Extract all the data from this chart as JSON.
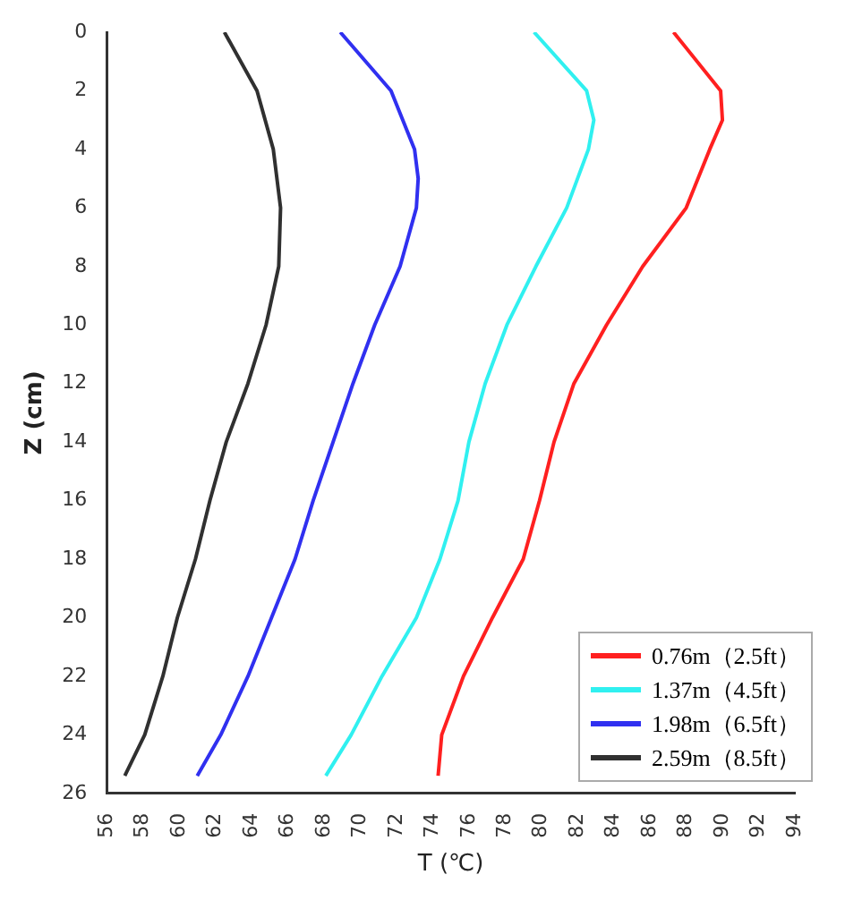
{
  "chart_data": {
    "type": "line",
    "xlabel": "T (℃)",
    "ylabel": "Z (cm)",
    "xlim": [
      56,
      94
    ],
    "ylim": [
      26,
      0
    ],
    "xticks": [
      56,
      58,
      60,
      62,
      64,
      66,
      68,
      70,
      72,
      74,
      76,
      78,
      80,
      82,
      84,
      86,
      88,
      90,
      92,
      94
    ],
    "yticks": [
      0,
      2,
      4,
      6,
      8,
      10,
      12,
      14,
      16,
      18,
      20,
      22,
      24,
      26
    ],
    "legend": "right",
    "grid": false,
    "marker": "none",
    "line_style": "solid",
    "series": [
      {
        "name": "0.76m（2.5ft）",
        "color": "#ff2020",
        "x": [
          87.3,
          89.9,
          90.0,
          89.3,
          88.0,
          85.6,
          83.6,
          81.8,
          80.7,
          79.9,
          79.0,
          77.3,
          75.7,
          74.5,
          74.3
        ],
        "values": [
          0,
          2,
          3,
          4,
          6,
          8,
          10,
          12,
          14,
          16,
          18,
          20,
          22,
          24,
          25.4
        ]
      },
      {
        "name": "1.37m（4.5ft）",
        "color": "#30f0f0",
        "x": [
          79.6,
          82.5,
          82.9,
          82.6,
          81.4,
          79.7,
          78.1,
          76.9,
          76.0,
          75.4,
          74.4,
          73.1,
          71.2,
          69.5,
          68.1
        ],
        "values": [
          0,
          2,
          3,
          4,
          6,
          8,
          10,
          12,
          14,
          16,
          18,
          20,
          22,
          24,
          25.4
        ]
      },
      {
        "name": "1.98m（6.5ft）",
        "color": "#3030f0",
        "x": [
          68.9,
          71.7,
          73.0,
          73.2,
          73.1,
          72.2,
          70.8,
          69.6,
          68.5,
          67.4,
          66.4,
          65.1,
          63.8,
          62.3,
          61.0
        ],
        "values": [
          0,
          2,
          4,
          5,
          6,
          8,
          10,
          12,
          14,
          16,
          18,
          20,
          22,
          24,
          25.4
        ]
      },
      {
        "name": "2.59m（8.5ft）",
        "color": "#303030",
        "x": [
          62.5,
          64.3,
          65.2,
          65.6,
          65.5,
          64.8,
          63.8,
          62.6,
          61.7,
          60.9,
          59.9,
          59.1,
          58.1,
          57.0
        ],
        "values": [
          0,
          2,
          4,
          6,
          8,
          10,
          12,
          14,
          16,
          18,
          20,
          22,
          24,
          25.4
        ]
      }
    ]
  }
}
